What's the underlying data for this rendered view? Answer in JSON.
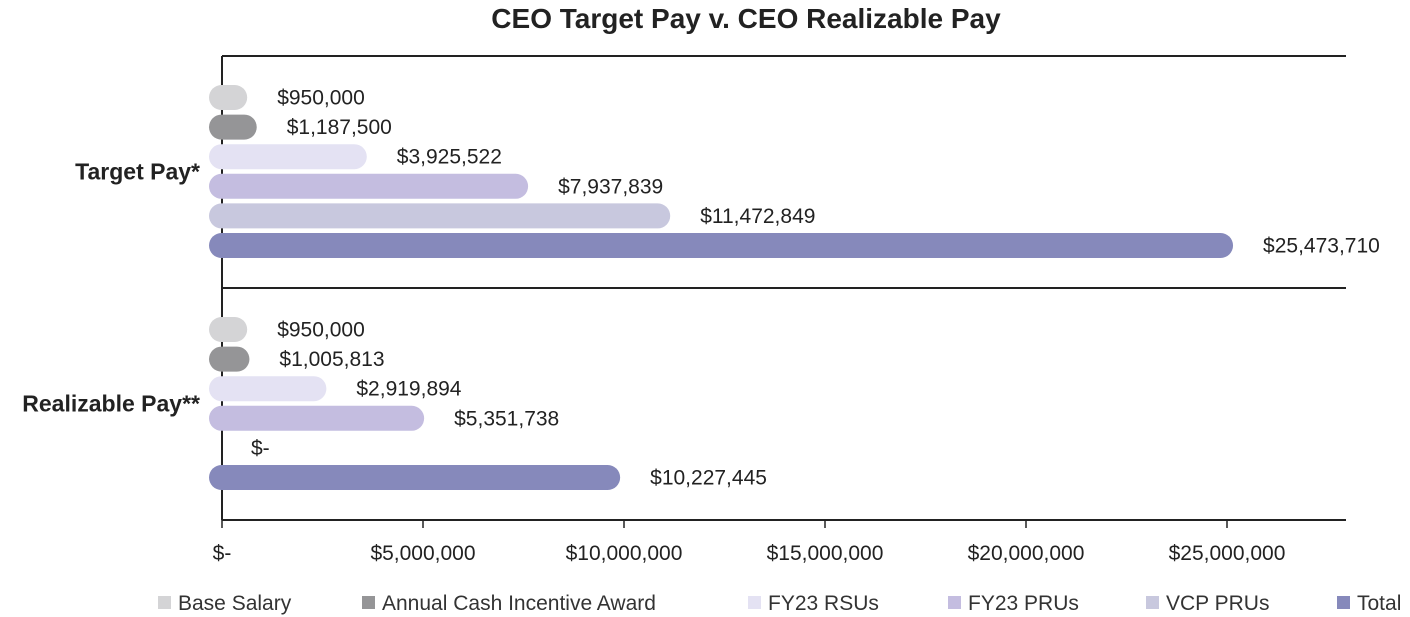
{
  "chart_data": {
    "type": "bar",
    "orientation": "horizontal",
    "title": "CEO Target Pay v. CEO Realizable Pay",
    "categories": [
      "Target Pay*",
      "Realizable Pay**"
    ],
    "series": [
      {
        "name": "Base Salary",
        "color": "#d4d4d6",
        "values": [
          950000,
          950000
        ],
        "labels": [
          "$950,000",
          "$950,000"
        ]
      },
      {
        "name": "Annual Cash Incentive Award",
        "color": "#959597",
        "values": [
          1187500,
          1005813
        ],
        "labels": [
          "$1,187,500",
          "$1,005,813"
        ]
      },
      {
        "name": "FY23 RSUs",
        "color": "#e4e2f3",
        "values": [
          3925522,
          2919894
        ],
        "labels": [
          "$3,925,522",
          "$2,919,894"
        ]
      },
      {
        "name": "FY23 PRUs",
        "color": "#c4bde0",
        "values": [
          7937839,
          5351738
        ],
        "labels": [
          "$7,937,839",
          "$5,351,738"
        ]
      },
      {
        "name": "VCP PRUs",
        "color": "#c8c8de",
        "values": [
          11472849,
          0
        ],
        "labels": [
          "$11,472,849",
          "$-"
        ]
      },
      {
        "name": "Total",
        "color": "#8689bb",
        "values": [
          25473710,
          10227445
        ],
        "labels": [
          "$25,473,710",
          "$10,227,445"
        ]
      }
    ],
    "xlim": [
      0,
      28000000
    ],
    "xticks": [
      0,
      5000000,
      10000000,
      15000000,
      20000000,
      25000000
    ],
    "xtick_labels": [
      "$-",
      "$5,000,000",
      "$10,000,000",
      "$15,000,000",
      "$20,000,000",
      "$25,000,000"
    ],
    "legend_position": "bottom",
    "grid": false
  }
}
